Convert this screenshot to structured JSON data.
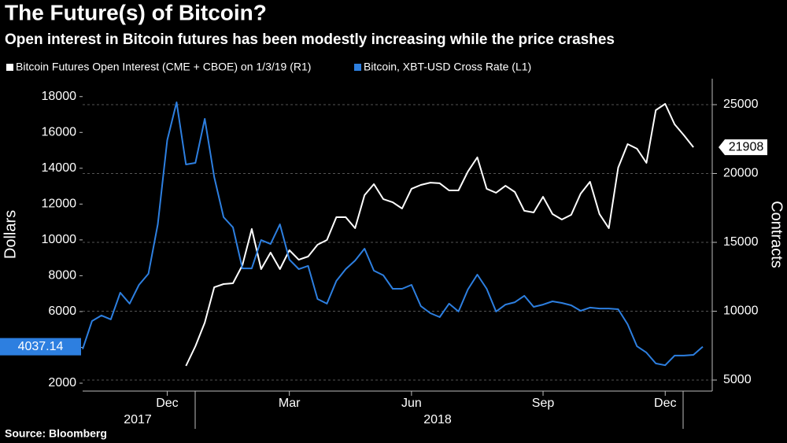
{
  "chart_data": {
    "type": "line",
    "title": "The Future(s) of Bitcoin?",
    "subtitle": "Open interest in Bitcoin futures has been modestly increasing while the price crashes",
    "source": "Source: Bloomberg",
    "y_label": "Dollars",
    "y2_label": "Contracts",
    "categories": [
      null,
      null,
      null,
      null,
      null,
      null,
      null,
      null,
      null,
      "Dec",
      null,
      null,
      null,
      null,
      null,
      null,
      null,
      null,
      null,
      null,
      null,
      null,
      "Mar",
      null,
      null,
      null,
      null,
      null,
      null,
      null,
      null,
      null,
      null,
      null,
      null,
      "Jun",
      null,
      null,
      null,
      null,
      null,
      null,
      null,
      null,
      null,
      null,
      null,
      null,
      null,
      "Sep",
      null,
      null,
      null,
      null,
      null,
      null,
      null,
      null,
      null,
      null,
      null,
      null,
      "Dec",
      null,
      null,
      null,
      null
    ],
    "x_group_labels": [
      "2017",
      "2018"
    ],
    "ylim": [
      1560,
      19000
    ],
    "yticks": [
      2000,
      4000,
      6000,
      8000,
      10000,
      12000,
      14000,
      16000,
      18000
    ],
    "y2lim": [
      4200,
      26886
    ],
    "y2ticks": [
      5000,
      10000,
      15000,
      20000,
      25000
    ],
    "grid": true,
    "series": [
      {
        "name": "Bitcoin Futures Open Interest (CME + CBOE) on 1/3/19 (R1)",
        "color": "#ffffff",
        "axis": "y2",
        "values": [
          null,
          null,
          null,
          null,
          null,
          null,
          null,
          null,
          null,
          null,
          null,
          6030,
          7460,
          9170,
          11740,
          11970,
          12030,
          13340,
          15970,
          13060,
          14260,
          13060,
          14430,
          13740,
          13970,
          14830,
          15170,
          16830,
          16830,
          16030,
          18430,
          19230,
          18140,
          17910,
          17460,
          18890,
          19170,
          19340,
          19290,
          18770,
          18770,
          20140,
          21170,
          18890,
          18600,
          19110,
          18660,
          17290,
          17170,
          18310,
          17060,
          16660,
          17000,
          18540,
          19400,
          17060,
          16030,
          20430,
          22140,
          21800,
          20770,
          24600,
          25060,
          23570,
          22770,
          21908,
          null
        ]
      },
      {
        "name": "Bitcoin, XBT-USD Cross Rate  (L1)",
        "color": "#2d7fe0",
        "axis": "y",
        "values": [
          3900,
          5470,
          5780,
          5560,
          7050,
          6440,
          7490,
          8110,
          10870,
          15570,
          17680,
          14210,
          14300,
          16760,
          13510,
          11270,
          10700,
          8410,
          8410,
          9990,
          9770,
          10870,
          8900,
          8370,
          8550,
          6700,
          6440,
          7710,
          8370,
          8850,
          9510,
          8280,
          8020,
          7270,
          7270,
          7490,
          6300,
          5910,
          5690,
          6440,
          6000,
          7230,
          8060,
          7270,
          6000,
          6390,
          6520,
          6880,
          6260,
          6390,
          6570,
          6480,
          6350,
          6040,
          6220,
          6170,
          6170,
          6130,
          5290,
          4060,
          3710,
          3100,
          3000,
          3540,
          3540,
          3580,
          4037.14
        ]
      }
    ]
  }
}
